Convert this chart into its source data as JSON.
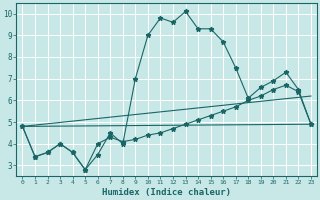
{
  "title": "",
  "xlabel": "Humidex (Indice chaleur)",
  "xlim": [
    -0.5,
    23.5
  ],
  "ylim": [
    2.5,
    10.5
  ],
  "xticks": [
    0,
    1,
    2,
    3,
    4,
    5,
    6,
    7,
    8,
    9,
    10,
    11,
    12,
    13,
    14,
    15,
    16,
    17,
    18,
    19,
    20,
    21,
    22,
    23
  ],
  "yticks": [
    3,
    4,
    5,
    6,
    7,
    8,
    9,
    10
  ],
  "background_color": "#c8e8e8",
  "line_color": "#1a6666",
  "grid_color": "#ffffff",
  "lines": [
    {
      "x": [
        0,
        1,
        2,
        3,
        4,
        5,
        6,
        7,
        8,
        9,
        10,
        11,
        12,
        13,
        14,
        15,
        16,
        17,
        18,
        19,
        20,
        21,
        22,
        23
      ],
      "y": [
        4.8,
        3.4,
        3.6,
        4.0,
        3.6,
        2.8,
        3.5,
        4.5,
        4.0,
        7.0,
        9.0,
        9.8,
        9.6,
        10.1,
        9.3,
        9.3,
        8.7,
        7.5,
        6.1,
        6.6,
        6.9,
        7.3,
        6.5,
        4.9
      ],
      "marker": true
    },
    {
      "x": [
        0,
        1,
        2,
        3,
        4,
        5,
        6,
        7,
        8,
        9,
        10,
        11,
        12,
        13,
        14,
        15,
        16,
        17,
        18,
        19,
        20,
        21,
        22,
        23
      ],
      "y": [
        4.8,
        3.4,
        3.6,
        4.0,
        3.6,
        2.8,
        4.0,
        4.3,
        4.1,
        4.2,
        4.4,
        4.5,
        4.7,
        4.9,
        5.1,
        5.3,
        5.5,
        5.7,
        6.0,
        6.2,
        6.5,
        6.7,
        6.4,
        4.9
      ],
      "marker": true
    },
    {
      "x": [
        0,
        23
      ],
      "y": [
        4.8,
        4.9
      ],
      "marker": false
    },
    {
      "x": [
        0,
        23
      ],
      "y": [
        4.8,
        6.2
      ],
      "marker": false
    }
  ]
}
